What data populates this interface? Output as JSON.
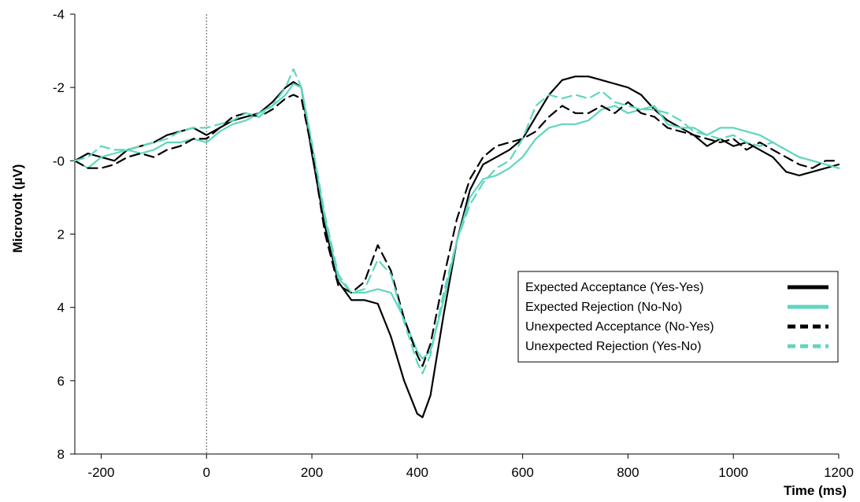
{
  "chart_data": {
    "type": "line",
    "xlabel": "Time (ms)",
    "ylabel": "Microvolt (µV)",
    "xlim": [
      -250,
      1200
    ],
    "ylim": [
      -4,
      8
    ],
    "y_inverted": true,
    "x_ticks": [
      -200,
      0,
      200,
      400,
      600,
      800,
      1000,
      1200
    ],
    "x_tick_labels": [
      "-200",
      "0",
      "200",
      "400",
      "600",
      "800",
      "1000",
      "1200"
    ],
    "y_ticks": [
      -4,
      -2,
      0,
      2,
      4,
      6,
      8
    ],
    "y_tick_labels": [
      "-4",
      "-2",
      "-0",
      "2",
      "4",
      "6",
      "8"
    ],
    "grid": false,
    "reference_line_x": 0,
    "legend_position": "right",
    "series": [
      {
        "name": "Expected Acceptance (Yes-Yes)",
        "color": "#000000",
        "style": "solid",
        "x": [
          -250,
          -225,
          -200,
          -175,
          -150,
          -125,
          -100,
          -75,
          -50,
          -25,
          0,
          25,
          50,
          75,
          100,
          125,
          150,
          165,
          180,
          200,
          225,
          250,
          275,
          300,
          325,
          350,
          375,
          400,
          410,
          425,
          450,
          475,
          500,
          525,
          550,
          575,
          600,
          625,
          650,
          675,
          700,
          725,
          750,
          775,
          800,
          825,
          850,
          875,
          900,
          925,
          950,
          975,
          1000,
          1025,
          1050,
          1075,
          1100,
          1125,
          1150,
          1175,
          1200
        ],
        "y": [
          0.0,
          -0.2,
          -0.1,
          0.0,
          -0.3,
          -0.4,
          -0.5,
          -0.7,
          -0.8,
          -0.9,
          -0.7,
          -0.9,
          -1.1,
          -1.2,
          -1.3,
          -1.6,
          -2.0,
          -2.15,
          -2.0,
          -0.2,
          1.8,
          3.3,
          3.8,
          3.8,
          3.9,
          4.8,
          6.0,
          6.9,
          7.0,
          6.4,
          4.2,
          2.2,
          0.8,
          0.1,
          -0.1,
          -0.3,
          -0.6,
          -1.2,
          -1.8,
          -2.2,
          -2.3,
          -2.3,
          -2.2,
          -2.1,
          -2.0,
          -1.8,
          -1.4,
          -1.1,
          -0.9,
          -0.7,
          -0.4,
          -0.6,
          -0.4,
          -0.5,
          -0.3,
          -0.1,
          0.3,
          0.4,
          0.3,
          0.2,
          0.1
        ]
      },
      {
        "name": "Expected Rejection (No-No)",
        "color": "#5fd6bf",
        "style": "solid",
        "x": [
          -250,
          -225,
          -200,
          -175,
          -150,
          -125,
          -100,
          -75,
          -50,
          -25,
          0,
          25,
          50,
          75,
          100,
          125,
          150,
          165,
          180,
          200,
          225,
          250,
          275,
          300,
          325,
          350,
          375,
          400,
          410,
          425,
          450,
          475,
          500,
          525,
          550,
          575,
          600,
          625,
          650,
          675,
          700,
          725,
          750,
          775,
          800,
          825,
          850,
          875,
          900,
          925,
          950,
          975,
          1000,
          1025,
          1050,
          1075,
          1100,
          1125,
          1150,
          1175,
          1200
        ],
        "y": [
          0.0,
          0.2,
          -0.1,
          -0.2,
          -0.3,
          -0.2,
          -0.3,
          -0.5,
          -0.5,
          -0.6,
          -0.5,
          -0.8,
          -1.0,
          -1.1,
          -1.3,
          -1.5,
          -1.8,
          -2.1,
          -2.0,
          -0.4,
          1.6,
          3.2,
          3.6,
          3.6,
          3.5,
          3.6,
          4.3,
          5.2,
          5.4,
          5.2,
          3.8,
          2.2,
          1.0,
          0.5,
          0.4,
          0.2,
          -0.1,
          -0.6,
          -0.9,
          -1.0,
          -1.0,
          -1.1,
          -1.4,
          -1.5,
          -1.3,
          -1.4,
          -1.5,
          -1.0,
          -0.9,
          -0.9,
          -0.7,
          -0.9,
          -0.9,
          -0.8,
          -0.7,
          -0.5,
          -0.3,
          -0.1,
          0.0,
          0.1,
          0.2
        ]
      },
      {
        "name": "Unexpected Acceptance (No-Yes)",
        "color": "#000000",
        "style": "dashed",
        "x": [
          -250,
          -225,
          -200,
          -175,
          -150,
          -125,
          -100,
          -75,
          -50,
          -25,
          0,
          25,
          50,
          75,
          100,
          125,
          150,
          165,
          180,
          200,
          225,
          250,
          275,
          300,
          325,
          350,
          375,
          400,
          410,
          425,
          450,
          475,
          500,
          525,
          550,
          575,
          600,
          625,
          650,
          675,
          700,
          725,
          750,
          775,
          800,
          825,
          850,
          875,
          900,
          925,
          950,
          975,
          1000,
          1025,
          1050,
          1075,
          1100,
          1125,
          1150,
          1175,
          1200
        ],
        "y": [
          0.0,
          0.2,
          0.2,
          0.1,
          -0.1,
          -0.2,
          -0.1,
          -0.3,
          -0.4,
          -0.6,
          -0.6,
          -0.9,
          -1.2,
          -1.3,
          -1.2,
          -1.4,
          -1.7,
          -1.8,
          -1.7,
          -0.3,
          2.0,
          3.4,
          3.6,
          3.3,
          2.3,
          3.0,
          4.3,
          5.3,
          5.6,
          5.0,
          3.2,
          1.6,
          0.5,
          -0.1,
          -0.4,
          -0.5,
          -0.6,
          -0.8,
          -1.2,
          -1.5,
          -1.3,
          -1.3,
          -1.5,
          -1.3,
          -1.6,
          -1.3,
          -1.2,
          -0.9,
          -0.8,
          -0.7,
          -0.6,
          -0.5,
          -0.6,
          -0.3,
          -0.5,
          -0.3,
          -0.1,
          0.1,
          0.2,
          0.0,
          0.0
        ]
      },
      {
        "name": "Unexpected Rejection (Yes-No)",
        "color": "#5fd6bf",
        "style": "dashed",
        "x": [
          -250,
          -225,
          -200,
          -175,
          -150,
          -125,
          -100,
          -75,
          -50,
          -25,
          0,
          25,
          50,
          75,
          100,
          125,
          150,
          165,
          180,
          200,
          225,
          250,
          275,
          300,
          325,
          350,
          375,
          400,
          410,
          425,
          450,
          475,
          500,
          525,
          550,
          575,
          600,
          625,
          650,
          675,
          700,
          725,
          750,
          775,
          800,
          825,
          850,
          875,
          900,
          925,
          950,
          975,
          1000,
          1025,
          1050,
          1075,
          1100,
          1125,
          1150,
          1175,
          1200
        ],
        "y": [
          0.0,
          -0.1,
          -0.4,
          -0.3,
          -0.3,
          -0.4,
          -0.5,
          -0.6,
          -0.8,
          -0.9,
          -0.9,
          -1.0,
          -1.1,
          -1.3,
          -1.2,
          -1.5,
          -2.0,
          -2.5,
          -2.0,
          -0.5,
          1.5,
          3.1,
          3.6,
          3.5,
          2.7,
          3.1,
          4.4,
          5.5,
          5.8,
          5.3,
          3.6,
          2.2,
          1.2,
          0.6,
          0.2,
          0.0,
          -0.6,
          -1.5,
          -1.8,
          -1.7,
          -1.8,
          -1.7,
          -1.9,
          -1.6,
          -1.5,
          -1.4,
          -1.4,
          -1.3,
          -1.1,
          -0.8,
          -0.7,
          -0.6,
          -0.7,
          -0.5,
          -0.4,
          -0.5,
          -0.3,
          -0.1,
          0.0,
          0.1,
          0.2
        ]
      }
    ]
  }
}
